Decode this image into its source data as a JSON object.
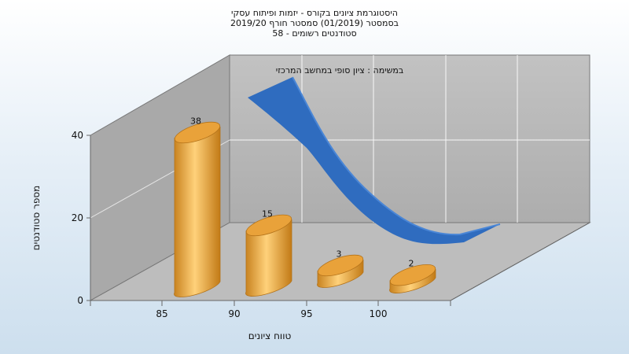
{
  "chart_data": {
    "type": "bar",
    "title_lines": [
      "היסטוגרמת ציונים בקורס - יזמות ופיתוח עסקי",
      "בסמסטר  (01/2019)  סמסטר חורף 2019/20",
      "סטודנטים רשומים - 58"
    ],
    "categories": [
      "85",
      "90",
      "95",
      "100"
    ],
    "values": [
      38,
      15,
      3,
      2
    ],
    "xlabel": "טווח ציונים",
    "ylabel": "מספר סטודנטים",
    "ylim": [
      0,
      40
    ],
    "yticks": [
      "0",
      "20",
      "40"
    ],
    "annotation": "במשימה : ציון סופי במחשב המרכזי",
    "curve": {
      "type": "area",
      "description": "ribbon"
    },
    "colors": {
      "bar": "#e8a43c",
      "bar_dark": "#c57f1d",
      "curve": "#2f6cbf",
      "wall": "#b3b3b3",
      "floor": "#bcbcbc"
    },
    "grid": true
  }
}
